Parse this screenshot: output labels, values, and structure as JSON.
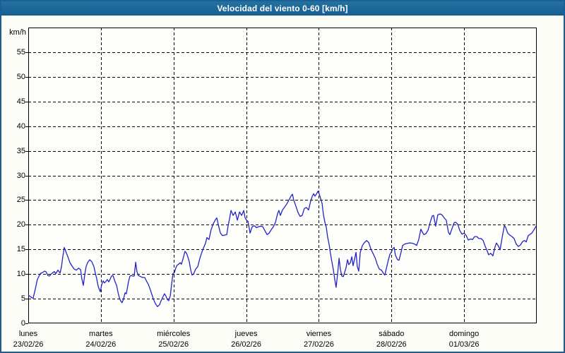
{
  "window": {
    "title": "Velocidad del viento 0-60 [km/h]"
  },
  "colors": {
    "titlebar_bg": "#1A659E",
    "titlebar_text": "#FFFFFF",
    "frame": "#1B6094",
    "page_bg": "#FCFDF6",
    "plot_bg": "#FEFEFA",
    "grid": "#000000",
    "axis": "#000000",
    "line": "#2222CC",
    "label_text": "#000000"
  },
  "chart_data": {
    "type": "line",
    "title": "Velocidad del viento 0-60 [km/h]",
    "xlabel": "",
    "ylabel": "km/h",
    "ylim": [
      0,
      60
    ],
    "xlim": [
      0,
      168
    ],
    "x_unit": "hours",
    "grid": true,
    "grid_style": "dashed",
    "yticks": [
      0,
      5,
      10,
      15,
      20,
      25,
      30,
      35,
      40,
      45,
      50,
      55
    ],
    "days": [
      {
        "name": "lunes",
        "date": "23/02/26"
      },
      {
        "name": "martes",
        "date": "24/02/26"
      },
      {
        "name": "miércoles",
        "date": "25/02/26"
      },
      {
        "name": "jueves",
        "date": "26/02/26"
      },
      {
        "name": "viernes",
        "date": "27/02/26"
      },
      {
        "name": "sábado",
        "date": "28/02/26"
      },
      {
        "name": "domingo",
        "date": "01/03/26"
      }
    ],
    "series": [
      {
        "name": "Velocidad del viento",
        "color": "#2222CC",
        "points": [
          [
            0,
            5.8
          ],
          [
            0.5,
            5.5
          ],
          [
            1.2,
            5.2
          ],
          [
            1.6,
            5.1
          ],
          [
            2.3,
            6.9
          ],
          [
            3,
            8.9
          ],
          [
            4,
            10.1
          ],
          [
            4.7,
            10.3
          ],
          [
            5.4,
            10.6
          ],
          [
            5.8,
            10.5
          ],
          [
            6.5,
            9.7
          ],
          [
            7,
            9.6
          ],
          [
            7.7,
            10.1
          ],
          [
            8.6,
            10.5
          ],
          [
            9.1,
            10.1
          ],
          [
            9.8,
            10.8
          ],
          [
            10.3,
            10.4
          ],
          [
            10.5,
            10.2
          ],
          [
            11,
            11.5
          ],
          [
            11.4,
            13.5
          ],
          [
            11.9,
            15.4
          ],
          [
            12.4,
            14.6
          ],
          [
            13.1,
            13.5
          ],
          [
            13.8,
            12.3
          ],
          [
            14.5,
            11.6
          ],
          [
            15.2,
            11.0
          ],
          [
            15.9,
            10.8
          ],
          [
            16.6,
            11.2
          ],
          [
            17.3,
            10.9
          ],
          [
            17.7,
            9.0
          ],
          [
            18.2,
            7.7
          ],
          [
            18.7,
            10.0
          ],
          [
            19.1,
            11.5
          ],
          [
            19.6,
            12.3
          ],
          [
            20.3,
            12.9
          ],
          [
            21,
            12.5
          ],
          [
            21.7,
            11.5
          ],
          [
            22.2,
            10.1
          ],
          [
            22.6,
            9.1
          ],
          [
            23.1,
            7.5
          ],
          [
            23.8,
            6.4
          ],
          [
            24.3,
            7.9
          ],
          [
            24.7,
            8.6
          ],
          [
            25.2,
            8.2
          ],
          [
            25.7,
            8.5
          ],
          [
            26.1,
            8.9
          ],
          [
            26.6,
            8.4
          ],
          [
            27.1,
            9.0
          ],
          [
            27.5,
            9.6
          ],
          [
            28,
            9.7
          ],
          [
            28.7,
            8.4
          ],
          [
            29.2,
            7.7
          ],
          [
            29.6,
            6.4
          ],
          [
            30.1,
            5.2
          ],
          [
            30.6,
            4.5
          ],
          [
            31,
            4.2
          ],
          [
            31.5,
            5.0
          ],
          [
            32,
            6.2
          ],
          [
            32.4,
            6.0
          ],
          [
            33.1,
            8.4
          ],
          [
            33.6,
            9.6
          ],
          [
            34.1,
            9.7
          ],
          [
            34.5,
            9.6
          ],
          [
            35,
            9.6
          ],
          [
            35.5,
            12.4
          ],
          [
            35.9,
            10.5
          ],
          [
            36.4,
            9.7
          ],
          [
            37.1,
            9.5
          ],
          [
            37.8,
            9.3
          ],
          [
            38.5,
            9.3
          ],
          [
            39.2,
            8.4
          ],
          [
            39.7,
            7.9
          ],
          [
            40.4,
            6.7
          ],
          [
            41.3,
            5.0
          ],
          [
            42,
            4.0
          ],
          [
            42.7,
            3.4
          ],
          [
            43.4,
            3.8
          ],
          [
            43.9,
            4.6
          ],
          [
            44.6,
            5.5
          ],
          [
            45,
            6.0
          ],
          [
            45.5,
            5.5
          ],
          [
            46,
            4.8
          ],
          [
            46.4,
            4.6
          ],
          [
            46.9,
            5.5
          ],
          [
            47.4,
            8.0
          ],
          [
            47.8,
            10.1
          ],
          [
            48.3,
            10.3
          ],
          [
            48.8,
            11.3
          ],
          [
            49.2,
            11.8
          ],
          [
            49.7,
            12.0
          ],
          [
            50.2,
            12.3
          ],
          [
            50.6,
            12.0
          ],
          [
            51.1,
            13.0
          ],
          [
            51.8,
            14.6
          ],
          [
            52.3,
            14.2
          ],
          [
            52.7,
            13.5
          ],
          [
            53.2,
            12.5
          ],
          [
            53.7,
            10.8
          ],
          [
            54.1,
            9.8
          ],
          [
            54.6,
            10.0
          ],
          [
            55.3,
            11.0
          ],
          [
            56,
            11.5
          ],
          [
            56.7,
            13.2
          ],
          [
            57.4,
            14.5
          ],
          [
            58.1,
            15.6
          ],
          [
            58.6,
            16.3
          ],
          [
            59,
            17.4
          ],
          [
            59.7,
            17.0
          ],
          [
            60.4,
            19.0
          ],
          [
            61.1,
            20.2
          ],
          [
            61.8,
            21.0
          ],
          [
            62.3,
            21.4
          ],
          [
            62.8,
            20.0
          ],
          [
            63.5,
            18.3
          ],
          [
            64.2,
            17.8
          ],
          [
            64.9,
            17.9
          ],
          [
            65.6,
            18.0
          ],
          [
            66,
            19.7
          ],
          [
            66.5,
            21.2
          ],
          [
            67,
            22.9
          ],
          [
            67.7,
            21.9
          ],
          [
            68.4,
            22.6
          ],
          [
            69.1,
            20.9
          ],
          [
            69.8,
            22.6
          ],
          [
            70.5,
            21.9
          ],
          [
            71.2,
            22.9
          ],
          [
            71.6,
            21.5
          ],
          [
            72.1,
            20.9
          ],
          [
            72.6,
            20.7
          ],
          [
            73.3,
            18.3
          ],
          [
            74,
            19.6
          ],
          [
            74.7,
            19.8
          ],
          [
            75.4,
            19.4
          ],
          [
            76.1,
            19.6
          ],
          [
            76.8,
            19.7
          ],
          [
            77.5,
            19.6
          ],
          [
            78.2,
            18.8
          ],
          [
            78.9,
            18.0
          ],
          [
            79.6,
            18.3
          ],
          [
            80.3,
            19.0
          ],
          [
            81,
            19.6
          ],
          [
            81.7,
            20.5
          ],
          [
            82.4,
            22.3
          ],
          [
            82.8,
            22.9
          ],
          [
            83.3,
            21.9
          ],
          [
            84,
            23.0
          ],
          [
            84.7,
            23.6
          ],
          [
            85.4,
            24.2
          ],
          [
            86.1,
            25.0
          ],
          [
            86.8,
            25.8
          ],
          [
            87.3,
            26.2
          ],
          [
            87.7,
            25.0
          ],
          [
            88.4,
            23.8
          ],
          [
            89.1,
            22.5
          ],
          [
            89.8,
            21.7
          ],
          [
            90.5,
            21.9
          ],
          [
            91.2,
            23.3
          ],
          [
            91.9,
            23.5
          ],
          [
            92.6,
            23.0
          ],
          [
            93.3,
            24.8
          ],
          [
            93.8,
            25.7
          ],
          [
            94.3,
            26.3
          ],
          [
            94.7,
            25.8
          ],
          [
            95.2,
            26.2
          ],
          [
            95.7,
            26.8
          ],
          [
            96.1,
            26.3
          ],
          [
            96.6,
            25.3
          ],
          [
            97.1,
            24.3
          ],
          [
            97.5,
            22.1
          ],
          [
            98,
            20.5
          ],
          [
            98.5,
            19.4
          ],
          [
            98.9,
            17.5
          ],
          [
            99.4,
            16.0
          ],
          [
            99.9,
            14.0
          ],
          [
            100.3,
            12.5
          ],
          [
            100.8,
            10.9
          ],
          [
            101.3,
            8.8
          ],
          [
            101.7,
            7.3
          ],
          [
            102.2,
            10.0
          ],
          [
            102.7,
            13.2
          ],
          [
            103.1,
            11.0
          ],
          [
            103.6,
            9.6
          ],
          [
            104.1,
            9.5
          ],
          [
            104.5,
            10.3
          ],
          [
            105,
            11.3
          ],
          [
            105.5,
            12.9
          ],
          [
            105.9,
            11.9
          ],
          [
            106.4,
            12.3
          ],
          [
            106.9,
            13.5
          ],
          [
            107.3,
            11.7
          ],
          [
            107.8,
            13.0
          ],
          [
            108.3,
            14.4
          ],
          [
            108.7,
            11.5
          ],
          [
            109.2,
            10.6
          ],
          [
            109.7,
            14.4
          ],
          [
            110.4,
            15.8
          ],
          [
            111.1,
            16.4
          ],
          [
            111.8,
            16.8
          ],
          [
            112.5,
            16.4
          ],
          [
            113.2,
            15.1
          ],
          [
            113.9,
            14.2
          ],
          [
            114.6,
            13.3
          ],
          [
            115.3,
            12.0
          ],
          [
            116,
            11.0
          ],
          [
            116.7,
            10.8
          ],
          [
            117.4,
            10.1
          ],
          [
            117.8,
            9.8
          ],
          [
            118.3,
            11.1
          ],
          [
            119,
            12.9
          ],
          [
            119.5,
            14.0
          ],
          [
            120,
            14.5
          ],
          [
            120.4,
            15.1
          ],
          [
            120.9,
            15.4
          ],
          [
            121.3,
            13.8
          ],
          [
            122,
            12.9
          ],
          [
            122.5,
            12.8
          ],
          [
            123.2,
            14.5
          ],
          [
            123.7,
            15.8
          ],
          [
            124.4,
            16.1
          ],
          [
            125.1,
            16.2
          ],
          [
            125.8,
            16.3
          ],
          [
            126.5,
            16.3
          ],
          [
            127.2,
            16.2
          ],
          [
            127.9,
            16.0
          ],
          [
            128.3,
            15.8
          ],
          [
            129,
            17.0
          ],
          [
            129.7,
            19.1
          ],
          [
            130.2,
            18.5
          ],
          [
            130.7,
            18.0
          ],
          [
            131.4,
            18.2
          ],
          [
            132.1,
            18.9
          ],
          [
            132.8,
            20.5
          ],
          [
            133.5,
            21.8
          ],
          [
            133.9,
            21.9
          ],
          [
            134.6,
            19.7
          ],
          [
            135.3,
            22.0
          ],
          [
            136,
            22.2
          ],
          [
            136.7,
            22.0
          ],
          [
            137.4,
            21.4
          ],
          [
            138.1,
            20.9
          ],
          [
            138.8,
            18.5
          ],
          [
            139.3,
            18.0
          ],
          [
            140,
            19.2
          ],
          [
            140.7,
            20.4
          ],
          [
            141.2,
            20.5
          ],
          [
            141.9,
            20.1
          ],
          [
            142.6,
            18.8
          ],
          [
            143.3,
            18.1
          ],
          [
            144,
            18.3
          ],
          [
            144.7,
            17.8
          ],
          [
            145.4,
            16.9
          ],
          [
            146.1,
            17.1
          ],
          [
            146.8,
            17.0
          ],
          [
            147.5,
            17.6
          ],
          [
            148.2,
            17.6
          ],
          [
            148.9,
            17.2
          ],
          [
            149.6,
            17.2
          ],
          [
            150.3,
            16.8
          ],
          [
            151,
            15.6
          ],
          [
            151.7,
            14.6
          ],
          [
            152.1,
            13.9
          ],
          [
            152.8,
            14.2
          ],
          [
            153.5,
            13.7
          ],
          [
            154.2,
            15.5
          ],
          [
            154.7,
            16.3
          ],
          [
            155.4,
            15.6
          ],
          [
            155.9,
            14.9
          ],
          [
            156.6,
            17.5
          ],
          [
            157.3,
            19.8
          ],
          [
            157.7,
            19.5
          ],
          [
            158.4,
            18.3
          ],
          [
            159.1,
            17.9
          ],
          [
            159.8,
            17.6
          ],
          [
            160.5,
            17.2
          ],
          [
            161.2,
            16.1
          ],
          [
            161.9,
            15.6
          ],
          [
            162.6,
            15.9
          ],
          [
            163.3,
            16.6
          ],
          [
            164,
            16.8
          ],
          [
            164.5,
            16.5
          ],
          [
            165.2,
            17.8
          ],
          [
            165.9,
            18.1
          ],
          [
            166.4,
            18.3
          ],
          [
            167.1,
            19.0
          ],
          [
            167.8,
            19.7
          ]
        ]
      }
    ]
  }
}
